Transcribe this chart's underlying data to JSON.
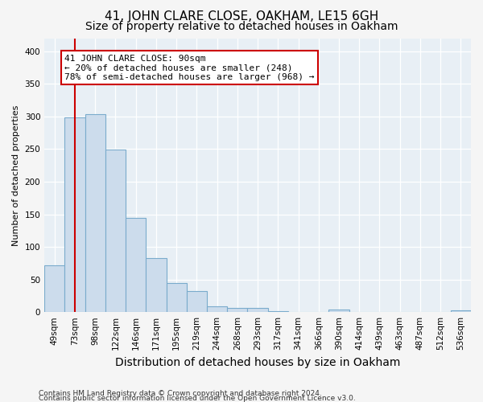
{
  "title": "41, JOHN CLARE CLOSE, OAKHAM, LE15 6GH",
  "subtitle": "Size of property relative to detached houses in Oakham",
  "xlabel": "Distribution of detached houses by size in Oakham",
  "ylabel": "Number of detached properties",
  "categories": [
    "49sqm",
    "73sqm",
    "98sqm",
    "122sqm",
    "146sqm",
    "171sqm",
    "195sqm",
    "219sqm",
    "244sqm",
    "268sqm",
    "293sqm",
    "317sqm",
    "341sqm",
    "366sqm",
    "390sqm",
    "414sqm",
    "439sqm",
    "463sqm",
    "487sqm",
    "512sqm",
    "536sqm"
  ],
  "values": [
    72,
    298,
    304,
    249,
    144,
    83,
    45,
    32,
    9,
    6,
    6,
    2,
    0,
    0,
    4,
    0,
    0,
    0,
    0,
    0,
    3
  ],
  "bar_color": "#ccdcec",
  "bar_edge_color": "#7aabcc",
  "vline_x": 1,
  "vline_color": "#cc0000",
  "ylim": [
    0,
    420
  ],
  "yticks": [
    0,
    50,
    100,
    150,
    200,
    250,
    300,
    350,
    400
  ],
  "annotation_text": "41 JOHN CLARE CLOSE: 90sqm\n← 20% of detached houses are smaller (248)\n78% of semi-detached houses are larger (968) →",
  "annotation_box_color": "#ffffff",
  "annotation_box_edge": "#cc0000",
  "footer_line1": "Contains HM Land Registry data © Crown copyright and database right 2024.",
  "footer_line2": "Contains public sector information licensed under the Open Government Licence v3.0.",
  "background_color": "#e8eff5",
  "grid_color": "#ffffff",
  "fig_background": "#f5f5f5",
  "title_fontsize": 11,
  "subtitle_fontsize": 10,
  "xlabel_fontsize": 10,
  "ylabel_fontsize": 8,
  "tick_fontsize": 7.5,
  "annotation_fontsize": 8,
  "footer_fontsize": 6.5
}
